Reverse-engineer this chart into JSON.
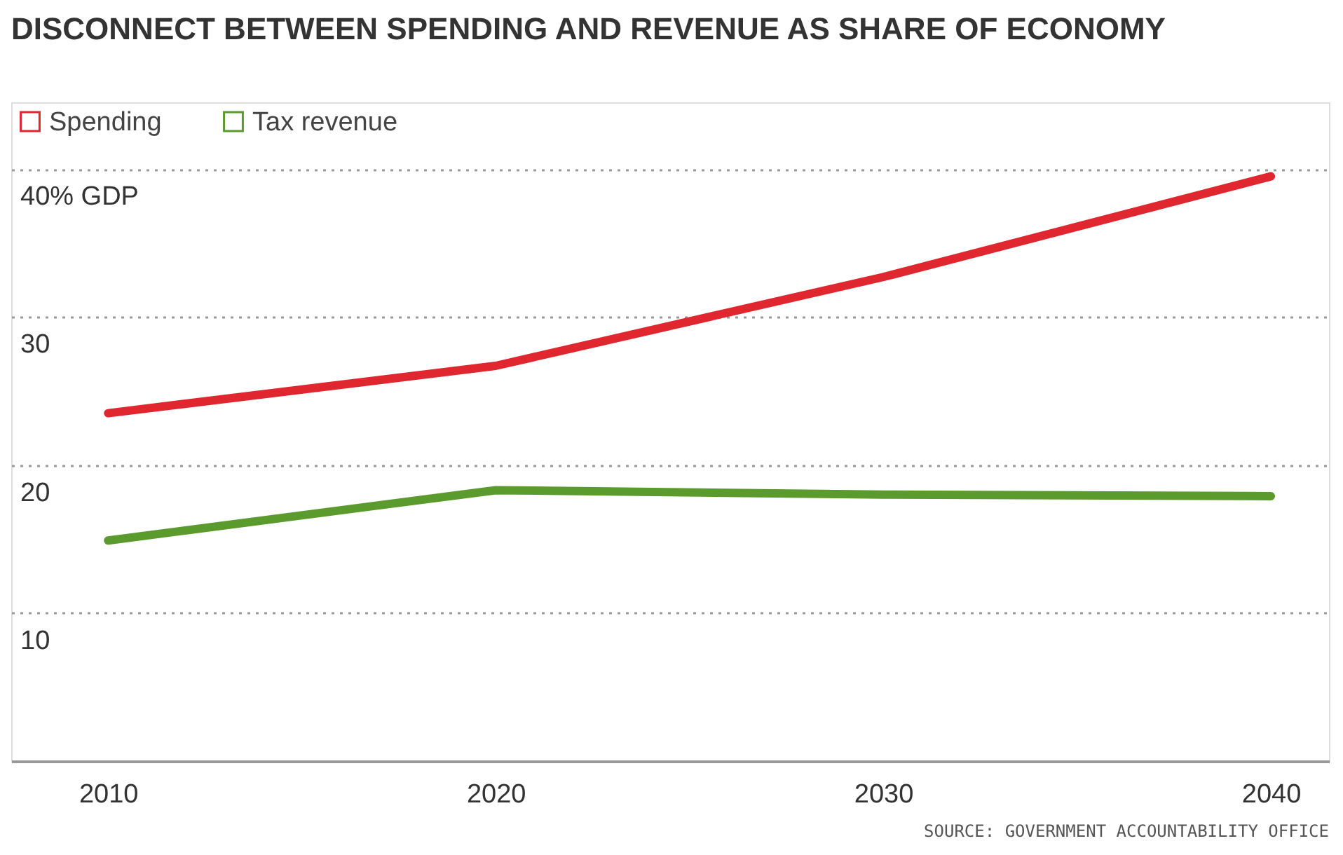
{
  "chart_data": {
    "type": "line",
    "title": "DISCONNECT BETWEEN SPENDING AND REVENUE AS SHARE OF ECONOMY",
    "x": [
      2010,
      2020,
      2030,
      2040
    ],
    "series": [
      {
        "name": "Spending",
        "color": "#e0262f",
        "values": [
          23.5,
          26.7,
          32.7,
          39.5
        ]
      },
      {
        "name": "Tax revenue",
        "color": "#5b9a2d",
        "values": [
          14.9,
          18.3,
          18.0,
          17.9
        ]
      }
    ],
    "xlim": [
      2007.5,
      2041.5
    ],
    "xticks": [
      2010,
      2020,
      2030,
      2040
    ],
    "ylim": [
      0,
      44.5
    ],
    "yticks": [
      {
        "value": 0,
        "label": null
      },
      10,
      20,
      30,
      {
        "value": 40,
        "label": "40% GDP"
      }
    ],
    "grid": "y",
    "legend": "top left",
    "marker": "none",
    "line_style": "solid",
    "annotations": [
      "SOURCE: GOVERNMENT ACCOUNTABILITY OFFICE"
    ]
  }
}
